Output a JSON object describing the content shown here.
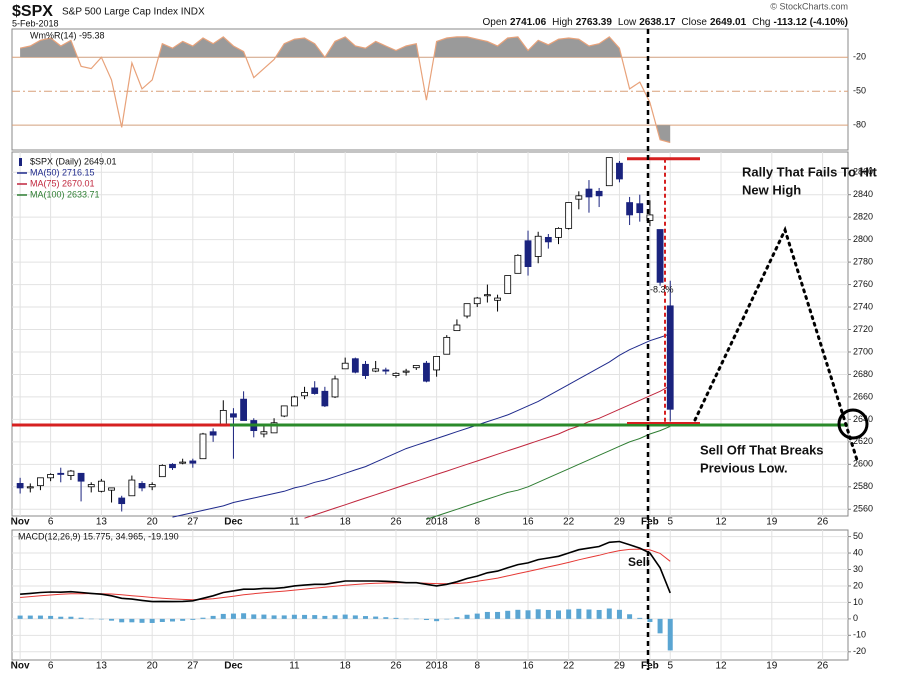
{
  "header": {
    "symbol": "$SPX",
    "name": "S&P 500 Large Cap Index INDX",
    "date": "5-Feb-2018",
    "watermark": "© StockCharts.com",
    "quote": [
      {
        "label": "Open",
        "value": "2741.06"
      },
      {
        "label": "High",
        "value": "2763.39"
      },
      {
        "label": "Low",
        "value": "2638.17"
      },
      {
        "label": "Close",
        "value": "2649.01"
      },
      {
        "label": "Chg",
        "value": "-113.12 (-4.10%)"
      }
    ]
  },
  "chart_data": [
    {
      "type": "williams",
      "series": [
        {
          "name": "Wm%R(14) -95.38",
          "color": "#e8a27a",
          "values": [
            -12,
            -10,
            -5,
            -3,
            -10,
            -5,
            -28,
            -30,
            -20,
            -40,
            -82,
            -25,
            -48,
            -40,
            -8,
            -12,
            -6,
            -10,
            -3,
            -8,
            -2,
            -10,
            -15,
            -38,
            -30,
            -22,
            -8,
            -4,
            -3,
            -8,
            -20,
            -6,
            -2,
            -10,
            -12,
            -6,
            -10,
            -14,
            -10,
            -8,
            -58,
            -6,
            -3,
            -2,
            -2,
            -4,
            -6,
            -10,
            -3,
            -2,
            -14,
            -5,
            -9,
            -4,
            -3,
            -4,
            -10,
            -8,
            -2,
            -12,
            -48,
            -42,
            -60,
            -93,
            -95.38
          ]
        }
      ],
      "fill_color": "#9a9a9a",
      "ylim": [
        -102,
        5
      ],
      "yticks": [
        -20,
        -50,
        -80
      ],
      "xlim": [
        -0.8,
        81.5
      ]
    },
    {
      "type": "candlestick",
      "series": [
        {
          "name": "$SPX (Daily) 2649.01",
          "color": "#1a237e",
          "open": [
            2583,
            2579,
            2581,
            2588,
            2592,
            2590,
            2592,
            2580,
            2576,
            2577,
            2570,
            2572,
            2583,
            2580,
            2589,
            2600,
            2601,
            2603,
            2605,
            2629,
            2634,
            2645,
            2658,
            2639,
            2627,
            2628,
            2643,
            2652,
            2661,
            2668,
            2665,
            2660,
            2685,
            2694,
            2689,
            2683,
            2684,
            2679,
            2682,
            2686,
            2690,
            2684,
            2698,
            2719,
            2732,
            2743,
            2750,
            2746,
            2752,
            2770,
            2799,
            2785,
            2802,
            2802,
            2810,
            2836,
            2845,
            2843,
            2848,
            2868,
            2833,
            2832,
            2817,
            2809,
            2741.06
          ],
          "high": [
            2588,
            2583,
            2588,
            2592,
            2597,
            2595,
            2592,
            2584,
            2587,
            2579,
            2572,
            2590,
            2585,
            2584,
            2600,
            2601,
            2605,
            2605,
            2628,
            2632,
            2657,
            2650,
            2665,
            2641,
            2634,
            2641,
            2652,
            2661,
            2669,
            2674,
            2669,
            2679,
            2695,
            2695,
            2692,
            2692,
            2686,
            2682,
            2685,
            2688,
            2692,
            2696,
            2715,
            2729,
            2743,
            2749,
            2760,
            2751,
            2768,
            2787,
            2808,
            2807,
            2805,
            2811,
            2833,
            2843,
            2853,
            2846,
            2873,
            2870,
            2838,
            2840,
            2835,
            2809,
            2763.39
          ],
          "low": [
            2574,
            2575,
            2577,
            2585,
            2584,
            2586,
            2567,
            2575,
            2575,
            2566,
            2558,
            2572,
            2576,
            2577,
            2589,
            2595,
            2600,
            2597,
            2605,
            2620,
            2634,
            2605,
            2639,
            2624,
            2624,
            2628,
            2642,
            2652,
            2658,
            2662,
            2651,
            2659,
            2685,
            2681,
            2676,
            2682,
            2680,
            2677,
            2679,
            2684,
            2673,
            2678,
            2698,
            2719,
            2730,
            2740,
            2744,
            2736,
            2752,
            2770,
            2768,
            2779,
            2792,
            2796,
            2809,
            2827,
            2824,
            2829,
            2848,
            2851,
            2813,
            2816,
            2812,
            2759,
            2638.17
          ],
          "close": [
            2579,
            2580,
            2588,
            2591,
            2591,
            2594,
            2585,
            2582,
            2585,
            2579,
            2565,
            2586,
            2579,
            2582,
            2599,
            2597,
            2602,
            2601,
            2627,
            2626,
            2648,
            2642,
            2639,
            2630,
            2629,
            2637,
            2652,
            2660,
            2664,
            2663,
            2652,
            2676,
            2690,
            2682,
            2679,
            2685,
            2683,
            2681,
            2683,
            2688,
            2674,
            2696,
            2713,
            2724,
            2743,
            2748,
            2751,
            2748,
            2768,
            2786,
            2776,
            2803,
            2798,
            2810,
            2833,
            2839,
            2838,
            2839,
            2873,
            2854,
            2822,
            2824,
            2822,
            2762,
            2649.01
          ]
        },
        {
          "name": "MA(50) 2716.15",
          "color": "#1f2a8c",
          "values": [
            null,
            null,
            null,
            null,
            null,
            null,
            null,
            null,
            null,
            null,
            null,
            null,
            null,
            null,
            null,
            2553,
            2555,
            2557,
            2559,
            2561,
            2563,
            2566,
            2568,
            2570,
            2572,
            2574,
            2576,
            2579,
            2581,
            2584,
            2586,
            2589,
            2592,
            2595,
            2598,
            2602,
            2606,
            2610,
            2614,
            2617,
            2620,
            2623,
            2626,
            2629,
            2632,
            2635,
            2638,
            2641,
            2644,
            2648,
            2652,
            2656,
            2661,
            2666,
            2671,
            2676,
            2681,
            2686,
            2691,
            2697,
            2702,
            2706,
            2710,
            2713,
            2716.15
          ]
        },
        {
          "name": "MA(75) 2670.01",
          "color": "#c0263d",
          "values": [
            null,
            null,
            null,
            null,
            null,
            null,
            null,
            null,
            null,
            null,
            null,
            null,
            null,
            null,
            null,
            null,
            null,
            null,
            null,
            null,
            null,
            null,
            null,
            null,
            null,
            null,
            null,
            null,
            2552,
            2555,
            2558,
            2561,
            2564,
            2567,
            2570,
            2573,
            2576,
            2579,
            2582,
            2585,
            2588,
            2591,
            2594,
            2597,
            2600,
            2603,
            2606,
            2609,
            2612,
            2615,
            2618,
            2621,
            2624,
            2627,
            2631,
            2634,
            2638,
            2641,
            2645,
            2649,
            2653,
            2657,
            2661,
            2665,
            2670.01
          ]
        },
        {
          "name": "MA(100) 2633.71",
          "color": "#2e7d32",
          "values": [
            null,
            null,
            null,
            null,
            null,
            null,
            null,
            null,
            null,
            null,
            null,
            null,
            null,
            null,
            null,
            null,
            null,
            null,
            null,
            null,
            null,
            null,
            null,
            null,
            null,
            null,
            null,
            null,
            null,
            null,
            null,
            null,
            null,
            null,
            null,
            null,
            null,
            null,
            null,
            null,
            2551,
            2554,
            2557,
            2560,
            2563,
            2566,
            2569,
            2572,
            2575,
            2577,
            2580,
            2584,
            2588,
            2592,
            2596,
            2600,
            2604,
            2608,
            2612,
            2616,
            2620,
            2623,
            2627,
            2630,
            2633.71
          ]
        }
      ],
      "ylim": [
        2554,
        2878
      ],
      "yticks": [
        2560,
        2580,
        2600,
        2620,
        2640,
        2660,
        2680,
        2700,
        2720,
        2740,
        2760,
        2780,
        2800,
        2820,
        2840,
        2860
      ],
      "xlim": [
        -0.8,
        81.5
      ],
      "xticks": [
        {
          "value": 0,
          "label": "Nov"
        },
        {
          "value": 3,
          "label": "6"
        },
        {
          "value": 8,
          "label": "13"
        },
        {
          "value": 13,
          "label": "20"
        },
        {
          "value": 17,
          "label": "27"
        },
        {
          "value": 21,
          "label": "Dec"
        },
        {
          "value": 27,
          "label": "11"
        },
        {
          "value": 32,
          "label": "18"
        },
        {
          "value": 37,
          "label": "26"
        },
        {
          "value": 41,
          "label": "2018"
        },
        {
          "value": 45,
          "label": "8"
        },
        {
          "value": 50,
          "label": "16"
        },
        {
          "value": 54,
          "label": "22"
        },
        {
          "value": 59,
          "label": "29"
        },
        {
          "value": 62,
          "label": "Feb"
        },
        {
          "value": 64,
          "label": "5"
        },
        {
          "value": 69,
          "label": "12"
        },
        {
          "value": 74,
          "label": "19"
        },
        {
          "value": 79,
          "label": "26"
        }
      ],
      "annotations": {
        "support": 2635,
        "peak": 2872,
        "support_color": "#2a8a2a",
        "marker_color": "#d62020",
        "change_label": "-8.3%",
        "rally_note": [
          "Rally That Fails To Hit",
          "New High"
        ],
        "selloff_note": [
          "Sell Off That Breaks",
          "Previous Low."
        ]
      }
    },
    {
      "type": "macd",
      "label": "MACD(12,26,9) 15.775, 34.965, -19.190",
      "macd": {
        "color": "#000000",
        "values": [
          15,
          15.5,
          16,
          16.3,
          16.2,
          16.5,
          16,
          15.5,
          15,
          14,
          12.5,
          12,
          11.2,
          10.5,
          10.6,
          10.5,
          10.6,
          11,
          12.5,
          14,
          16,
          17,
          18,
          18,
          18.5,
          18.5,
          19,
          20,
          20.5,
          21,
          21,
          22,
          23,
          23,
          23,
          23,
          22.8,
          22.5,
          22,
          22,
          21,
          20,
          21,
          22.5,
          24.5,
          26,
          28,
          29,
          31,
          33,
          34,
          36,
          37,
          38,
          40,
          42,
          43,
          44,
          46.5,
          47,
          45,
          43,
          40,
          31,
          15.775
        ]
      },
      "signal": {
        "color": "#e53935",
        "values": [
          13,
          13.5,
          14,
          14.5,
          14.9,
          15.2,
          15.3,
          15.4,
          15.3,
          15.1,
          14.6,
          14.1,
          13.6,
          13,
          12.5,
          12.1,
          11.8,
          11.6,
          11.8,
          12.2,
          13,
          13.8,
          14.6,
          15.3,
          15.9,
          16.4,
          16.9,
          17.5,
          18.1,
          18.7,
          19.2,
          19.8,
          20.4,
          20.9,
          21.3,
          21.6,
          21.8,
          21.9,
          21.9,
          21.9,
          21.7,
          21.4,
          21.3,
          21.5,
          22,
          22.8,
          23.8,
          24.8,
          26.1,
          27.5,
          28.8,
          30.2,
          31.6,
          32.9,
          34.3,
          35.9,
          37.3,
          38.6,
          40.2,
          41.5,
          42.2,
          42.4,
          41.9,
          39.8,
          34.965
        ]
      },
      "histogram": {
        "color": "#5aa5d2",
        "values": [
          2,
          2,
          2,
          1.8,
          1.3,
          1.3,
          0.7,
          0.1,
          -0.3,
          -1.1,
          -2.1,
          -2.1,
          -2.4,
          -2.5,
          -1.9,
          -1.6,
          -1.2,
          -0.6,
          0.7,
          1.8,
          3,
          3.2,
          3.4,
          2.7,
          2.6,
          2.1,
          2.1,
          2.5,
          2.4,
          2.3,
          1.8,
          2.2,
          2.6,
          2.1,
          1.7,
          1.4,
          1,
          0.6,
          0.1,
          0.1,
          -0.7,
          -1.4,
          -0.3,
          1,
          2.5,
          3.2,
          4.2,
          4.2,
          4.9,
          5.5,
          5.2,
          5.8,
          5.4,
          5.1,
          5.7,
          6.1,
          5.7,
          5.4,
          6.3,
          5.5,
          2.8,
          0.6,
          -1.9,
          -8.8,
          -19.19
        ]
      },
      "annotation": "Sell",
      "ylim": [
        -25,
        54
      ],
      "yticks": [
        50,
        40,
        30,
        20,
        10,
        0,
        -10,
        -20
      ],
      "xlim": [
        -0.8,
        81.5
      ],
      "xticks": [
        {
          "value": 0,
          "label": "Nov"
        },
        {
          "value": 3,
          "label": "6"
        },
        {
          "value": 8,
          "label": "13"
        },
        {
          "value": 13,
          "label": "20"
        },
        {
          "value": 17,
          "label": "27"
        },
        {
          "value": 21,
          "label": "Dec"
        },
        {
          "value": 27,
          "label": "11"
        },
        {
          "value": 32,
          "label": "18"
        },
        {
          "value": 37,
          "label": "26"
        },
        {
          "value": 41,
          "label": "2018"
        },
        {
          "value": 45,
          "label": "8"
        },
        {
          "value": 50,
          "label": "16"
        },
        {
          "value": 54,
          "label": "22"
        },
        {
          "value": 59,
          "label": "29"
        },
        {
          "value": 62,
          "label": "Feb"
        },
        {
          "value": 64,
          "label": "5"
        },
        {
          "value": 69,
          "label": "12"
        },
        {
          "value": 74,
          "label": "19"
        },
        {
          "value": 79,
          "label": "26"
        }
      ]
    }
  ]
}
